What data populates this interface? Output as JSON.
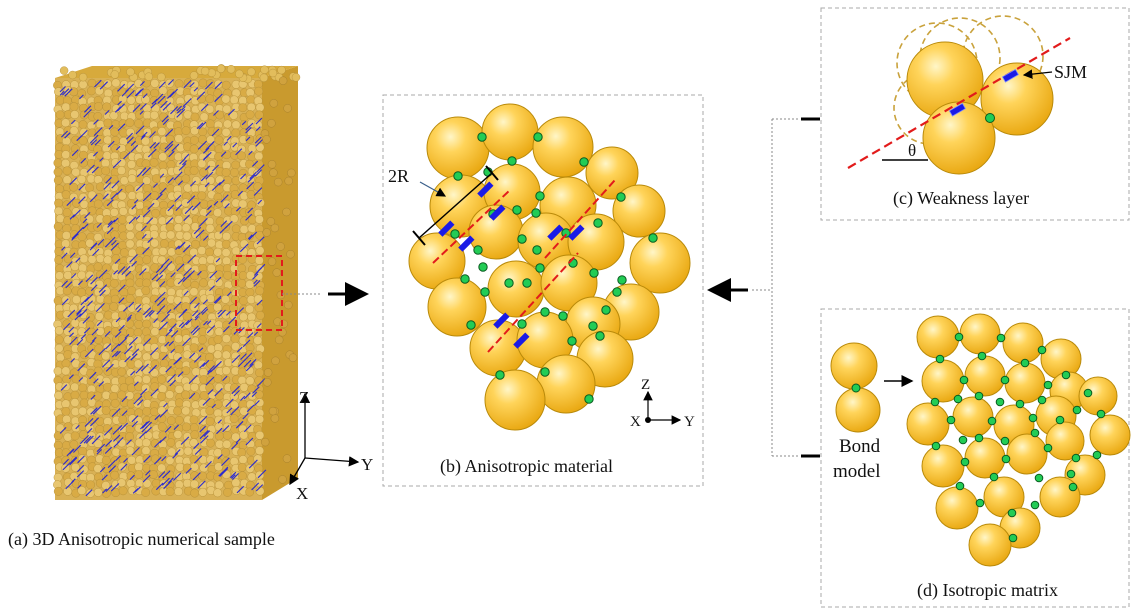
{
  "captions": {
    "a": "(a) 3D Anisotropic numerical sample",
    "b": "(b) Anisotropic material",
    "c": "(c) Weakness layer",
    "d": "(d) Isotropic matrix"
  },
  "axes_3d": {
    "z": "Z",
    "y": "Y",
    "x": "X"
  },
  "axes_2d": {
    "z": "Z",
    "y": "Y",
    "x": "X"
  },
  "labels": {
    "two_r": "2R",
    "sjm": "SJM",
    "theta": "θ",
    "bond_line1": "Bond",
    "bond_line2": "model"
  },
  "colors": {
    "particle": "#f2b820",
    "particle_edge": "#b98a0a",
    "contact": "#22cc55",
    "joint": "#1a1ae6",
    "weak_plane": "#e21b1b",
    "frame": "#a8a8a8"
  }
}
